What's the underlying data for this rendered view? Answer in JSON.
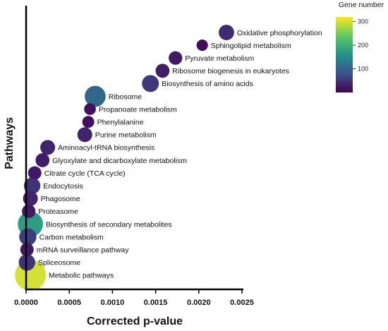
{
  "chart_data": {
    "type": "scatter",
    "title": "",
    "xlabel": "Corrected p-value",
    "ylabel": "Pathways",
    "xlim": [
      0,
      0.0025
    ],
    "xticks": [
      "0.0000",
      "0.0005",
      "0.0010",
      "0.0015",
      "0.0020",
      "0.0025"
    ],
    "grid": false,
    "size_legend": "none",
    "colorbar": {
      "title": "Gene number",
      "range": [
        0,
        320
      ],
      "ticks": [
        100,
        200,
        300
      ],
      "palette": [
        "#440154",
        "#3b528b",
        "#21918c",
        "#5ec962",
        "#fde725"
      ]
    },
    "points": [
      {
        "pathway": "Oxidative phosphorylation",
        "x": 0.00232,
        "genes": 40
      },
      {
        "pathway": "Sphingolipid metabolism",
        "x": 0.00204,
        "genes": 12
      },
      {
        "pathway": "Pyruvate metabolism",
        "x": 0.00173,
        "genes": 25
      },
      {
        "pathway": "Ribosome biogenesis in eukaryotes",
        "x": 0.00158,
        "genes": 28
      },
      {
        "pathway": "Biosynthesis of amino acids",
        "x": 0.00144,
        "genes": 55
      },
      {
        "pathway": "Ribosome",
        "x": 0.0008,
        "genes": 105
      },
      {
        "pathway": "Propanoate metabolism",
        "x": 0.00074,
        "genes": 14
      },
      {
        "pathway": "Phenylalanine",
        "x": 0.00072,
        "genes": 15
      },
      {
        "pathway": "Purine metabolism",
        "x": 0.00068,
        "genes": 35
      },
      {
        "pathway": "Aminoacyl-tRNA biosynthesis",
        "x": 0.00025,
        "genes": 35
      },
      {
        "pathway": "Glyoxylate and dicarboxylate metabolism",
        "x": 0.00019,
        "genes": 28
      },
      {
        "pathway": "Citrate cycle (TCA cycle)",
        "x": 0.0001,
        "genes": 24
      },
      {
        "pathway": "Endocytosis",
        "x": 7e-05,
        "genes": 50
      },
      {
        "pathway": "Phagosome",
        "x": 5e-05,
        "genes": 35
      },
      {
        "pathway": "Proteasome",
        "x": 3e-05,
        "genes": 25
      },
      {
        "pathway": "Biosynthesis of secondary metabolites",
        "x": 5e-05,
        "genes": 175
      },
      {
        "pathway": "Carbon metabolism",
        "x": 2e-05,
        "genes": 58
      },
      {
        "pathway": "mRNA surveillance pathway",
        "x": 1e-05,
        "genes": 24
      },
      {
        "pathway": "Spliceosome",
        "x": 1e-05,
        "genes": 50
      },
      {
        "pathway": "Metabolic pathways",
        "x": 5e-05,
        "genes": 300
      }
    ]
  }
}
